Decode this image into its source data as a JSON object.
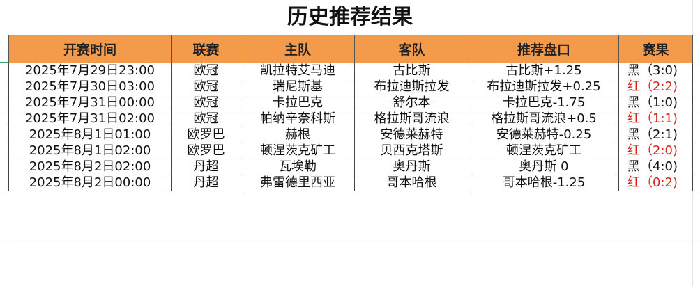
{
  "title": "历史推荐结果",
  "columns": [
    "开赛时间",
    "联赛",
    "主队",
    "客队",
    "推荐盘口",
    "赛果"
  ],
  "colors": {
    "header_bg": "#f39a4b",
    "red": "#d8251c",
    "black": "#111111"
  },
  "rows": [
    {
      "time": "2025年7月29日23:00",
      "league": "欧冠",
      "home": "凯拉特艾马迪",
      "away": "古比斯",
      "pick": "古比斯+1.25",
      "result": "黑（3:0)",
      "outcome": "black"
    },
    {
      "time": "2025年7月30日03:00",
      "league": "欧冠",
      "home": "瑞尼斯基",
      "away": "布拉迪斯拉发",
      "pick": "布拉迪斯拉发+0.25",
      "result": "红（2:2)",
      "outcome": "red"
    },
    {
      "time": "2025年7月31日00:00",
      "league": "欧冠",
      "home": "卡拉巴克",
      "away": "舒尔本",
      "pick": "卡拉巴克-1.75",
      "result": "黑（1:0)",
      "outcome": "black"
    },
    {
      "time": "2025年7月31日02:00",
      "league": "欧冠",
      "home": "帕纳辛奈科斯",
      "away": "格拉斯哥流浪",
      "pick": "格拉斯哥流浪+0.5",
      "result": "红（1:1)",
      "outcome": "red"
    },
    {
      "time": "2025年8月1日01:00",
      "league": "欧罗巴",
      "home": "赫根",
      "away": "安德莱赫特",
      "pick": "安德莱赫特-0.25",
      "result": "黑（2:1)",
      "outcome": "black"
    },
    {
      "time": "2025年8月1日02:00",
      "league": "欧罗巴",
      "home": "顿涅茨克矿工",
      "away": "贝西克塔斯",
      "pick": "顿涅茨克矿工",
      "result": "红（2:0)",
      "outcome": "red"
    },
    {
      "time": "2025年8月2日02:00",
      "league": "丹超",
      "home": "瓦埃勒",
      "away": "奥丹斯",
      "pick": "奥丹斯 0",
      "result": "黑（4:0)",
      "outcome": "black"
    },
    {
      "time": "2025年8月2日00:00",
      "league": "丹超",
      "home": "弗雷德里西亚",
      "away": "哥本哈根",
      "pick": "哥本哈根-1.25",
      "result": "红（0:2)",
      "outcome": "red"
    }
  ]
}
